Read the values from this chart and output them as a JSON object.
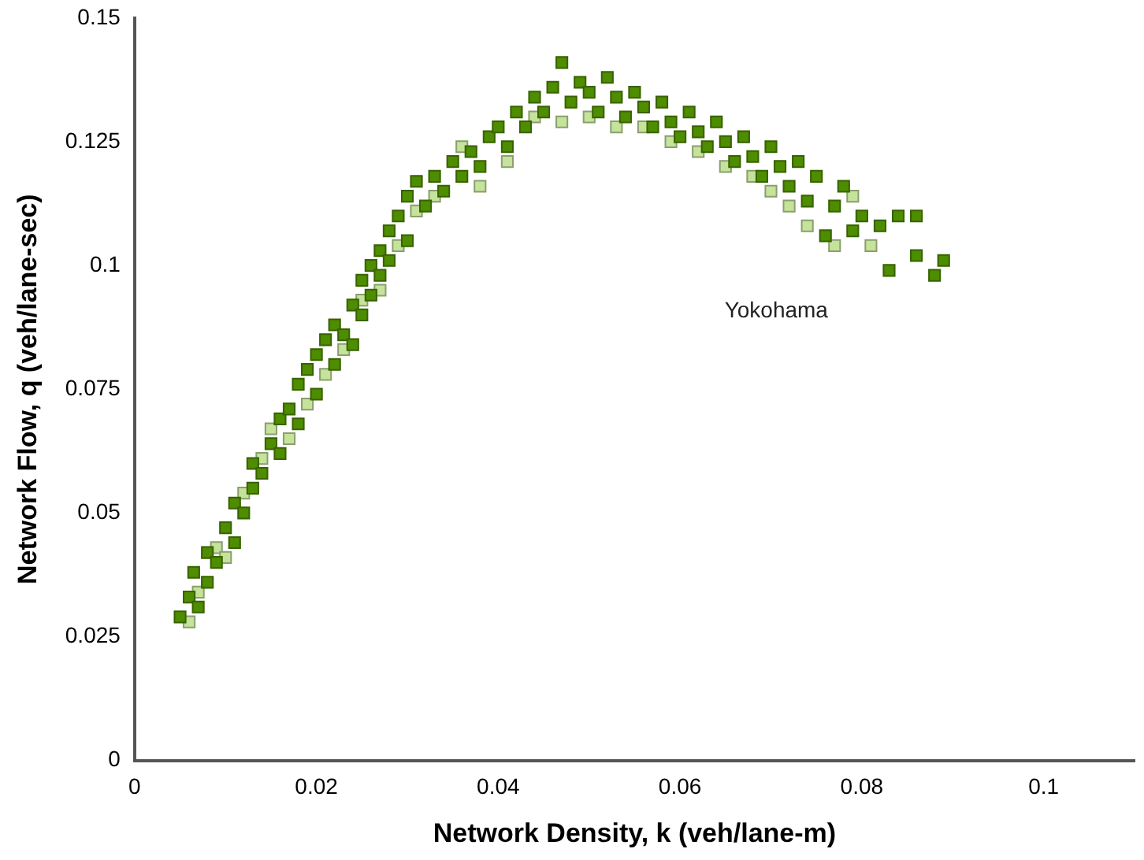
{
  "chart_data": {
    "type": "scatter",
    "xlabel": "Network Density, k (veh/lane-m)",
    "ylabel": "Network Flow, q (veh/lane-sec)",
    "annotations": [
      "Yokohama"
    ],
    "xlim": [
      0,
      0.11
    ],
    "xticks": [
      0,
      0.02,
      0.04,
      0.06,
      0.08,
      0.1
    ],
    "ylim": [
      0,
      0.15
    ],
    "yticks": [
      0,
      0.025,
      0.05,
      0.075,
      0.1,
      0.125,
      0.15
    ],
    "grid": false,
    "legend": false,
    "marker": "square",
    "series": [
      {
        "color": "#4e8c00",
        "x": [
          0.005,
          0.006,
          0.007,
          0.0065,
          0.008,
          0.008,
          0.009,
          0.01,
          0.011,
          0.011,
          0.012,
          0.013,
          0.013,
          0.014,
          0.015,
          0.016,
          0.016,
          0.017,
          0.018,
          0.018,
          0.019,
          0.02,
          0.02,
          0.021,
          0.022,
          0.022,
          0.023,
          0.024,
          0.024,
          0.025,
          0.025,
          0.026,
          0.026,
          0.027,
          0.027,
          0.028,
          0.028,
          0.029,
          0.03,
          0.03,
          0.031,
          0.032,
          0.033,
          0.034,
          0.035,
          0.036,
          0.037,
          0.038,
          0.039,
          0.04,
          0.041,
          0.042,
          0.043,
          0.044,
          0.045,
          0.046,
          0.047,
          0.048,
          0.049,
          0.05,
          0.051,
          0.052,
          0.053,
          0.054,
          0.055,
          0.056,
          0.057,
          0.058,
          0.059,
          0.06,
          0.061,
          0.062,
          0.063,
          0.064,
          0.065,
          0.066,
          0.067,
          0.068,
          0.069,
          0.07,
          0.071,
          0.072,
          0.073,
          0.074,
          0.075,
          0.076,
          0.077,
          0.078,
          0.079,
          0.08,
          0.082,
          0.083,
          0.084,
          0.086,
          0.086,
          0.088,
          0.089
        ],
        "values": [
          0.029,
          0.033,
          0.031,
          0.038,
          0.036,
          0.042,
          0.04,
          0.047,
          0.044,
          0.052,
          0.05,
          0.055,
          0.06,
          0.058,
          0.064,
          0.062,
          0.069,
          0.071,
          0.068,
          0.076,
          0.079,
          0.074,
          0.082,
          0.085,
          0.08,
          0.088,
          0.086,
          0.092,
          0.084,
          0.097,
          0.09,
          0.1,
          0.094,
          0.103,
          0.098,
          0.107,
          0.101,
          0.11,
          0.105,
          0.114,
          0.117,
          0.112,
          0.118,
          0.115,
          0.121,
          0.118,
          0.123,
          0.12,
          0.126,
          0.128,
          0.124,
          0.131,
          0.128,
          0.134,
          0.131,
          0.136,
          0.141,
          0.133,
          0.137,
          0.135,
          0.131,
          0.138,
          0.134,
          0.13,
          0.135,
          0.132,
          0.128,
          0.133,
          0.129,
          0.126,
          0.131,
          0.127,
          0.124,
          0.129,
          0.125,
          0.121,
          0.126,
          0.122,
          0.118,
          0.124,
          0.12,
          0.116,
          0.121,
          0.113,
          0.118,
          0.106,
          0.112,
          0.116,
          0.107,
          0.11,
          0.108,
          0.099,
          0.11,
          0.11,
          0.102,
          0.098,
          0.101
        ]
      },
      {
        "color": "#c5e39b",
        "x": [
          0.006,
          0.007,
          0.009,
          0.01,
          0.012,
          0.014,
          0.015,
          0.017,
          0.019,
          0.021,
          0.023,
          0.025,
          0.027,
          0.029,
          0.031,
          0.033,
          0.036,
          0.038,
          0.041,
          0.044,
          0.047,
          0.05,
          0.053,
          0.056,
          0.059,
          0.062,
          0.065,
          0.068,
          0.07,
          0.072,
          0.074,
          0.077,
          0.079,
          0.081
        ],
        "values": [
          0.028,
          0.034,
          0.043,
          0.041,
          0.054,
          0.061,
          0.067,
          0.065,
          0.072,
          0.078,
          0.083,
          0.093,
          0.095,
          0.104,
          0.111,
          0.114,
          0.124,
          0.116,
          0.121,
          0.13,
          0.129,
          0.13,
          0.128,
          0.128,
          0.125,
          0.123,
          0.12,
          0.118,
          0.115,
          0.112,
          0.108,
          0.104,
          0.114,
          0.104
        ]
      }
    ]
  }
}
